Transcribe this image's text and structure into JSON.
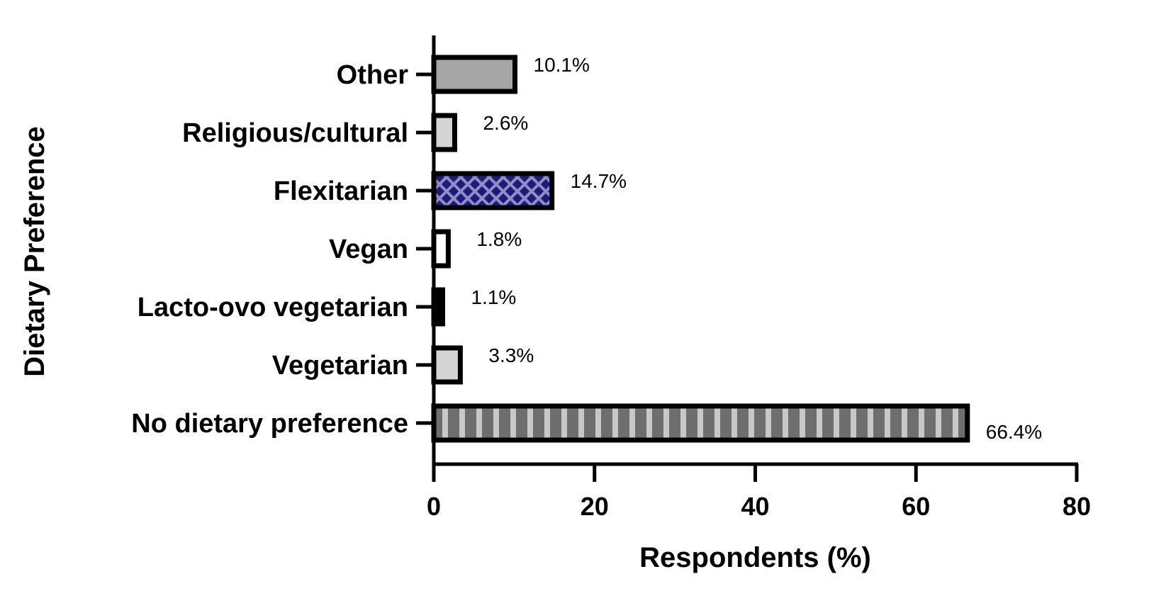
{
  "chart_data": {
    "type": "bar",
    "orientation": "horizontal",
    "categories": [
      "Other",
      "Religious/cultural",
      "Flexitarian",
      "Vegan",
      "Lacto-ovo vegetarian",
      "Vegetarian",
      "No dietary preference"
    ],
    "values": [
      10.1,
      2.6,
      14.7,
      1.8,
      1.1,
      3.3,
      66.4
    ],
    "value_labels": [
      "10.1%",
      "2.6%",
      "14.7%",
      "1.8%",
      "1.1%",
      "3.3%",
      "66.4%"
    ],
    "fills": [
      "gray",
      "light-gray",
      "navy-crosshatch",
      "white",
      "black",
      "light-gray",
      "gray-vertical-stripes"
    ],
    "colors": {
      "gray": "#a6a6a6",
      "light_gray": "#d4d4d4",
      "navy": "#1d1b7a",
      "navy_hatch": "#8f8dc4",
      "stripe_dark": "#6e6e6e",
      "stripe_light": "#c8c8c8",
      "outline": "#000000"
    },
    "xlabel": "Respondents (%)",
    "ylabel": "Dietary Preference",
    "xlim": [
      0,
      80
    ],
    "xticks": [
      0,
      20,
      40,
      60,
      80
    ],
    "grid": false
  }
}
